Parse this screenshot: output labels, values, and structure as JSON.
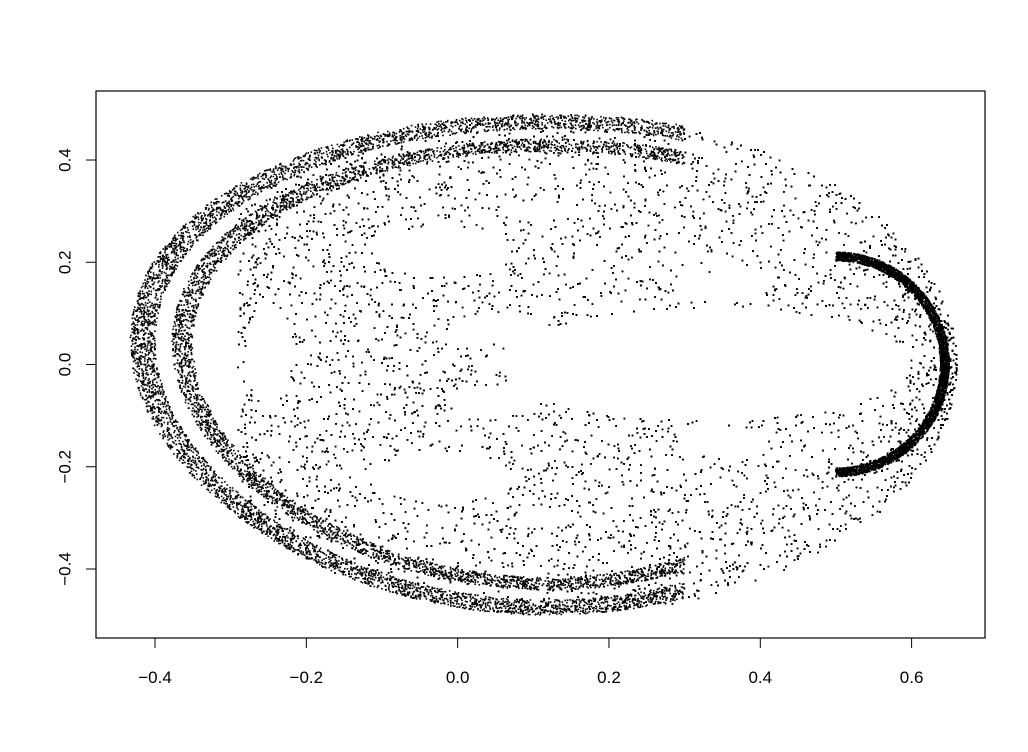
{
  "chart_data": {
    "type": "scatter",
    "title": "",
    "xlabel": "",
    "ylabel": "",
    "xlim": [
      -0.478,
      0.697
    ],
    "ylim": [
      -0.535,
      0.535
    ],
    "x_ticks": [
      -0.4,
      -0.2,
      0.0,
      0.2,
      0.4,
      0.6
    ],
    "x_tick_labels": [
      "−0.4",
      "−0.2",
      "0.0",
      "0.2",
      "0.4",
      "0.6"
    ],
    "y_ticks": [
      -0.4,
      -0.2,
      0.0,
      0.2,
      0.4
    ],
    "y_tick_labels": [
      "−0.4",
      "−0.2",
      "0.0",
      "0.2",
      "0.4"
    ],
    "grid": false,
    "legend": "none",
    "point_color": "#000000",
    "description_of_cloud": "dense point cloud of an iterated map orbit, symmetric about y=0, spanning x about -0.43 to 0.65 and y about -0.49 to 0.49",
    "hole_centers": [
      {
        "x": 0.33,
        "y": 0.0
      },
      {
        "x": 0.05,
        "y": 0.07
      },
      {
        "x": 0.05,
        "y": -0.07
      },
      {
        "x": -0.02,
        "y": 0.22
      },
      {
        "x": -0.02,
        "y": -0.22
      },
      {
        "x": 0.35,
        "y": 0.15
      },
      {
        "x": 0.35,
        "y": -0.15
      },
      {
        "x": 0.12,
        "y": 0.3
      },
      {
        "x": 0.12,
        "y": -0.3
      }
    ]
  }
}
